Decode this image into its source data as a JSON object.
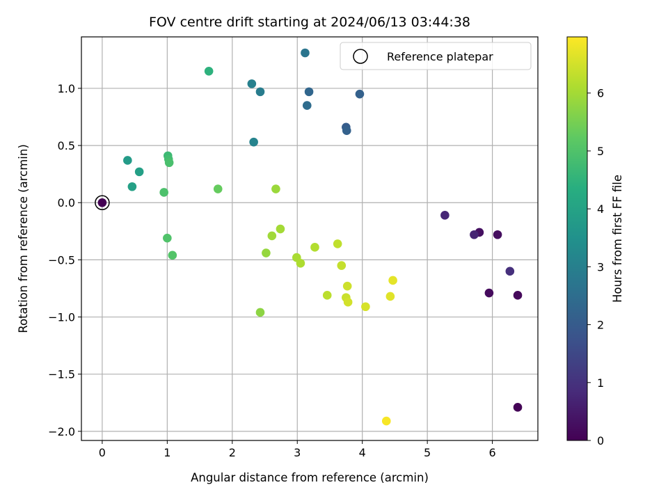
{
  "chart_data": {
    "type": "scatter",
    "title": "FOV centre drift starting at 2024/06/13 03:44:38",
    "xlabel": "Angular distance from reference (arcmin)",
    "ylabel": "Rotation from reference (arcmin)",
    "xlim": [
      -0.32,
      6.7
    ],
    "ylim": [
      -2.08,
      1.45
    ],
    "xticks": [
      0,
      1,
      2,
      3,
      4,
      5,
      6
    ],
    "xtick_labels": [
      "0",
      "1",
      "2",
      "3",
      "4",
      "5",
      "6"
    ],
    "yticks": [
      -2.0,
      -1.5,
      -1.0,
      -0.5,
      0.0,
      0.5,
      1.0
    ],
    "ytick_labels": [
      "−2.0",
      "−1.5",
      "−1.0",
      "−0.5",
      "0.0",
      "0.5",
      "1.0"
    ],
    "grid": true,
    "colormap": "viridis",
    "colorbar": {
      "label": "Hours from first FF file",
      "range": [
        0,
        6.97
      ],
      "ticks": [
        0,
        1,
        2,
        3,
        4,
        5,
        6
      ],
      "tick_labels": [
        "0",
        "1",
        "2",
        "3",
        "4",
        "5",
        "6"
      ]
    },
    "legend": {
      "position": "top-right",
      "entries": [
        "Reference platepar"
      ]
    },
    "reference_point": {
      "x": 0.0,
      "y": 0.0
    },
    "points": [
      {
        "x": 0.0,
        "y": 0.0,
        "c": 0.0
      },
      {
        "x": 6.39,
        "y": -1.79,
        "c": 0.05
      },
      {
        "x": 6.39,
        "y": -0.81,
        "c": 0.15
      },
      {
        "x": 5.95,
        "y": -0.79,
        "c": 0.2
      },
      {
        "x": 6.08,
        "y": -0.28,
        "c": 0.25
      },
      {
        "x": 5.8,
        "y": -0.26,
        "c": 0.3
      },
      {
        "x": 5.72,
        "y": -0.28,
        "c": 0.7
      },
      {
        "x": 6.27,
        "y": -0.6,
        "c": 0.95
      },
      {
        "x": 5.27,
        "y": -0.11,
        "c": 0.75
      },
      {
        "x": 3.96,
        "y": 0.95,
        "c": 2.15
      },
      {
        "x": 3.18,
        "y": 0.97,
        "c": 2.3
      },
      {
        "x": 3.15,
        "y": 0.85,
        "c": 2.45
      },
      {
        "x": 3.75,
        "y": 0.66,
        "c": 2.05
      },
      {
        "x": 3.76,
        "y": 0.63,
        "c": 2.15
      },
      {
        "x": 3.12,
        "y": 1.31,
        "c": 2.7
      },
      {
        "x": 2.43,
        "y": 0.97,
        "c": 2.9
      },
      {
        "x": 2.3,
        "y": 1.04,
        "c": 3.0
      },
      {
        "x": 2.33,
        "y": 0.53,
        "c": 3.1
      },
      {
        "x": 0.39,
        "y": 0.37,
        "c": 3.8
      },
      {
        "x": 0.57,
        "y": 0.27,
        "c": 3.9
      },
      {
        "x": 0.46,
        "y": 0.14,
        "c": 3.95
      },
      {
        "x": 1.64,
        "y": 1.15,
        "c": 4.45
      },
      {
        "x": 1.01,
        "y": 0.41,
        "c": 4.7
      },
      {
        "x": 1.02,
        "y": 0.38,
        "c": 4.8
      },
      {
        "x": 1.03,
        "y": 0.35,
        "c": 4.9
      },
      {
        "x": 0.95,
        "y": 0.09,
        "c": 4.95
      },
      {
        "x": 1.0,
        "y": -0.31,
        "c": 5.0
      },
      {
        "x": 1.08,
        "y": -0.46,
        "c": 5.05
      },
      {
        "x": 1.78,
        "y": 0.12,
        "c": 5.3
      },
      {
        "x": 2.67,
        "y": 0.12,
        "c": 5.9
      },
      {
        "x": 2.43,
        "y": -0.96,
        "c": 5.75
      },
      {
        "x": 2.52,
        "y": -0.44,
        "c": 5.85
      },
      {
        "x": 2.61,
        "y": -0.29,
        "c": 5.95
      },
      {
        "x": 2.74,
        "y": -0.23,
        "c": 6.0
      },
      {
        "x": 2.99,
        "y": -0.48,
        "c": 6.05
      },
      {
        "x": 3.05,
        "y": -0.53,
        "c": 6.1
      },
      {
        "x": 3.27,
        "y": -0.39,
        "c": 6.15
      },
      {
        "x": 3.46,
        "y": -0.81,
        "c": 6.25
      },
      {
        "x": 3.62,
        "y": -0.36,
        "c": 6.3
      },
      {
        "x": 3.68,
        "y": -0.55,
        "c": 6.35
      },
      {
        "x": 3.75,
        "y": -0.83,
        "c": 6.4
      },
      {
        "x": 3.77,
        "y": -0.73,
        "c": 6.45
      },
      {
        "x": 3.78,
        "y": -0.87,
        "c": 6.5
      },
      {
        "x": 4.05,
        "y": -0.91,
        "c": 6.55
      },
      {
        "x": 4.43,
        "y": -0.82,
        "c": 6.65
      },
      {
        "x": 4.47,
        "y": -0.68,
        "c": 6.7
      },
      {
        "x": 4.37,
        "y": -1.91,
        "c": 6.9
      }
    ]
  }
}
